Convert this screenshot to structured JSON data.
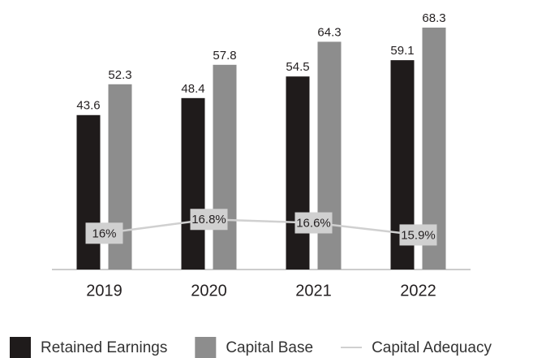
{
  "chart_data": {
    "type": "bar",
    "categories": [
      "2019",
      "2020",
      "2021",
      "2022"
    ],
    "series": [
      {
        "name": "Retained Earnings",
        "color": "#1f1b1b",
        "values": [
          43.6,
          48.4,
          54.5,
          59.1
        ]
      },
      {
        "name": "Capital Base",
        "color": "#8d8d8d",
        "values": [
          52.3,
          57.8,
          64.3,
          68.3
        ]
      },
      {
        "name": "Capital Adequacy",
        "type": "line",
        "axis": "y2",
        "color": "#d0d0d0",
        "values": [
          16,
          16.8,
          16.6,
          15.9
        ],
        "value_labels": [
          "16%",
          "16.8%",
          "16.6%",
          "15.9%"
        ]
      }
    ],
    "ylim": [
      0,
      68.3
    ],
    "y2lim": [
      13.9,
      27.9
    ]
  }
}
